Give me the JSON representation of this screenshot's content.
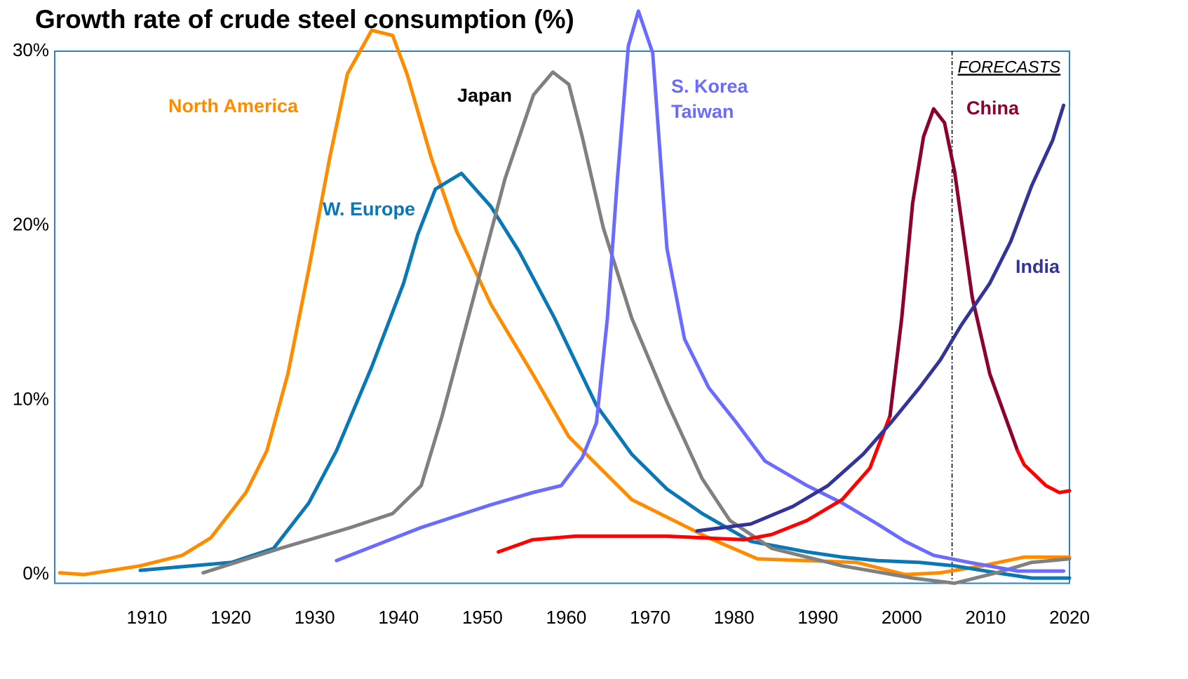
{
  "chart_data": {
    "type": "line",
    "title": "Growth rate of crude steel consumption (%)",
    "xlim": [
      1899,
      2020
    ],
    "ylim": [
      -0.5,
      30
    ],
    "xticks": [
      1910,
      1920,
      1930,
      1940,
      1950,
      1960,
      1970,
      1980,
      1990,
      2000,
      2010,
      2020
    ],
    "yticks": [
      {
        "value": 0,
        "label": "0%"
      },
      {
        "value": 10,
        "label": "10%"
      },
      {
        "value": 20,
        "label": "20%"
      },
      {
        "value": 30,
        "label": "30%"
      }
    ],
    "forecast_start": 2006,
    "annotations": [
      "North America",
      "Japan",
      "W. Europe",
      "S. Korea",
      "Taiwan",
      "China",
      "India",
      "FORECASTS"
    ],
    "series": [
      {
        "color": "#ff8c00",
        "x": [
          1899.6,
          1902.5,
          1909.2,
          1914.2,
          1917.6,
          1921.8,
          1924.3,
          1926.8,
          1929.3,
          1931.8,
          1933.9,
          1936.8,
          1939.3,
          1941,
          1943.9,
          1946.9,
          1951,
          1956,
          1960.3,
          1962.8,
          1967.8,
          1972.8,
          1977,
          1982.8,
          1988.7,
          1994.6,
          2000.4,
          2004.6,
          2009.6,
          2014.6,
          2020
        ],
        "values": [
          0.1,
          0,
          0.5,
          1.1,
          2.1,
          4.7,
          7.1,
          11.5,
          17.5,
          23.9,
          28.7,
          31.2,
          30.9,
          28.7,
          23.9,
          19.7,
          15.5,
          11.5,
          7.9,
          6.7,
          4.3,
          3.1,
          2.1,
          0.9,
          0.8,
          0.7,
          0,
          0.1,
          0.5,
          1.0,
          1.0
        ]
      },
      {
        "color": "#0a78b4",
        "x": [
          1909.2,
          1920.1,
          1925.1,
          1929.3,
          1932.6,
          1936.8,
          1940.6,
          1942.3,
          1944.4,
          1947.5,
          1951,
          1954.4,
          1958.6,
          1963.6,
          1967.8,
          1972,
          1976.2,
          1982,
          1988.7,
          1992.9,
          1997.1,
          2002.1,
          2006.3,
          2011.3,
          2015.5,
          2020
        ],
        "values": [
          0.24,
          0.7,
          1.5,
          4.1,
          7.1,
          11.9,
          16.7,
          19.5,
          22.1,
          23,
          21.1,
          18.5,
          14.7,
          9.7,
          6.9,
          4.9,
          3.5,
          1.9,
          1.3,
          1.0,
          0.8,
          0.7,
          0.5,
          0.1,
          -0.2,
          -0.2
        ]
      },
      {
        "color": "#808080",
        "x": [
          1916.7,
          1925.9,
          1934.3,
          1939.3,
          1942.7,
          1945.2,
          1949.4,
          1952.7,
          1956.1,
          1958.4,
          1960.3,
          1961.9,
          1964.4,
          1967.8,
          1972,
          1976.2,
          1979.5,
          1984.5,
          1992.9,
          2001.3,
          2006.3,
          2011.3,
          2015.5,
          2020
        ],
        "values": [
          0.1,
          1.5,
          2.7,
          3.5,
          5.1,
          9.1,
          16.7,
          22.7,
          27.5,
          28.8,
          28.1,
          25.1,
          19.9,
          14.7,
          9.9,
          5.5,
          3.1,
          1.5,
          0.5,
          -0.2,
          -0.5,
          0.1,
          0.7,
          0.9
        ]
      },
      {
        "color": "#6b6bff",
        "x": [
          1932.6,
          1942.7,
          1951,
          1956,
          1959.4,
          1961.9,
          1963.6,
          1964.9,
          1966.1,
          1967.4,
          1968.6,
          1970.3,
          1971.1,
          1972,
          1974.1,
          1977,
          1980.3,
          1983.7,
          1988.7,
          1992.9,
          1997.1,
          2000.4,
          2003.8,
          2008,
          2013.8,
          2019.3
        ],
        "values": [
          0.8,
          2.7,
          4,
          4.7,
          5.1,
          6.7,
          8.7,
          14.7,
          22.7,
          30.3,
          32.3,
          29.9,
          24.7,
          18.7,
          13.5,
          10.7,
          8.7,
          6.5,
          5.1,
          4.1,
          2.9,
          1.9,
          1.1,
          0.7,
          0.2,
          0.2
        ]
      },
      {
        "color": "#ff0000",
        "x": [
          1951.9,
          1956,
          1961.1,
          1972,
          1981.2,
          1984.5,
          1988.7,
          1992.9,
          1996.2,
          1998.6
        ],
        "values": [
          1.3,
          2.0,
          2.2,
          2.2,
          2.0,
          2.3,
          3.1,
          4.3,
          6.1,
          9.1
        ]
      },
      {
        "color": "#8b0030",
        "x": [
          1998.6,
          2000,
          2001.3,
          2002.6,
          2003.8,
          2005.1,
          2006.3,
          2008.4,
          2010.5,
          2013.8
        ],
        "values": [
          9.1,
          14.7,
          21.3,
          25.1,
          26.7,
          25.9,
          23.1,
          15.9,
          11.5,
          7.1
        ]
      },
      {
        "color": "#ff0000",
        "x": [
          2013.8,
          2014.6,
          2017.2,
          2018.8,
          2020
        ],
        "values": [
          7.1,
          6.3,
          5.1,
          4.7,
          4.8
        ]
      },
      {
        "color": "#333399",
        "x": [
          1975.6,
          1982,
          1987,
          1991.2,
          1995.4,
          1998.7,
          2002.1,
          2004.6,
          2007.1,
          2010.5,
          2013,
          2015.5,
          2018,
          2019.3
        ],
        "values": [
          2.5,
          2.9,
          3.9,
          5.1,
          6.9,
          8.7,
          10.7,
          12.3,
          14.3,
          16.7,
          19.1,
          22.3,
          24.9,
          26.9
        ]
      }
    ]
  }
}
